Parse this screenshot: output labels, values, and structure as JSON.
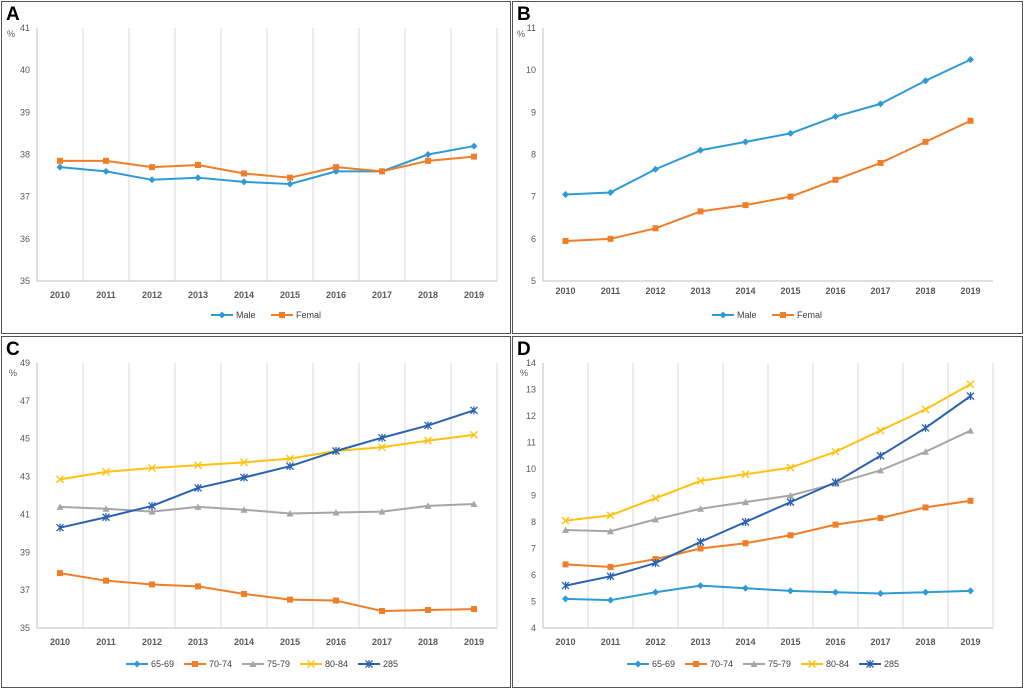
{
  "figure": {
    "colors": {
      "blue": "#2e9bd6",
      "orange": "#f07d28",
      "gray": "#a6a6a6",
      "yellow": "#ffc20e",
      "darkblue": "#2a62b0"
    }
  },
  "chart_data": [
    {
      "panel": "A",
      "type": "line",
      "ylabel": "%",
      "ylim": [
        35,
        41
      ],
      "yticks": [
        "35",
        "36",
        "37",
        "38",
        "39",
        "40",
        "41"
      ],
      "categories": [
        "2010",
        "2011",
        "2012",
        "2013",
        "2014",
        "2015",
        "2016",
        "2017",
        "2018",
        "2019"
      ],
      "grid": "vertical",
      "legend": "bottom",
      "series": [
        {
          "name": "Male",
          "color": "#2e9bd6",
          "marker": "diamond",
          "values": [
            37.7,
            37.6,
            37.4,
            37.45,
            37.35,
            37.3,
            37.6,
            37.6,
            38.0,
            38.2
          ]
        },
        {
          "name": "Femal",
          "color": "#f07d28",
          "marker": "square",
          "values": [
            37.85,
            37.85,
            37.7,
            37.75,
            37.55,
            37.45,
            37.7,
            37.6,
            37.85,
            37.95
          ]
        }
      ]
    },
    {
      "panel": "B",
      "type": "line",
      "ylabel": "%",
      "ylim": [
        5,
        11
      ],
      "yticks": [
        "5",
        "6",
        "7",
        "8",
        "9",
        "10",
        "11"
      ],
      "categories": [
        "2010",
        "2011",
        "2012",
        "2013",
        "2014",
        "2015",
        "2016",
        "2017",
        "2018",
        "2019"
      ],
      "grid": "none",
      "legend": "bottom",
      "series": [
        {
          "name": "Male",
          "color": "#2e9bd6",
          "marker": "diamond",
          "values": [
            7.05,
            7.1,
            7.65,
            8.1,
            8.3,
            8.5,
            8.9,
            9.2,
            9.75,
            10.25
          ]
        },
        {
          "name": "Femal",
          "color": "#f07d28",
          "marker": "square",
          "values": [
            5.95,
            6.0,
            6.25,
            6.65,
            6.8,
            7.0,
            7.4,
            7.8,
            8.3,
            8.8
          ]
        }
      ]
    },
    {
      "panel": "C",
      "type": "line",
      "ylabel": "%",
      "ylim": [
        35,
        49
      ],
      "yticks": [
        "35",
        "37",
        "39",
        "41",
        "43",
        "45",
        "47",
        "49"
      ],
      "categories": [
        "2010",
        "2011",
        "2012",
        "2013",
        "2014",
        "2015",
        "2016",
        "2017",
        "2018",
        "2019"
      ],
      "grid": "vertical",
      "legend": "bottom",
      "series": [
        {
          "name": "65-69",
          "color": "#2e9bd6",
          "marker": "diamond",
          "values": [
            null,
            null,
            null,
            null,
            null,
            null,
            null,
            null,
            null,
            null
          ]
        },
        {
          "name": "70-74",
          "color": "#f07d28",
          "marker": "square",
          "values": [
            37.9,
            37.5,
            37.3,
            37.2,
            36.8,
            36.5,
            36.45,
            35.9,
            35.95,
            36.0
          ]
        },
        {
          "name": "75-79",
          "color": "#a6a6a6",
          "marker": "triangle",
          "values": [
            41.4,
            41.3,
            41.15,
            41.4,
            41.25,
            41.05,
            41.1,
            41.15,
            41.45,
            41.55
          ]
        },
        {
          "name": "80-84",
          "color": "#ffc20e",
          "marker": "x",
          "values": [
            42.85,
            43.25,
            43.45,
            43.6,
            43.75,
            43.95,
            44.35,
            44.55,
            44.9,
            45.2
          ]
        },
        {
          "name": "285",
          "color": "#2a62b0",
          "marker": "asterisk",
          "values": [
            40.3,
            40.85,
            41.45,
            42.4,
            42.95,
            43.55,
            44.35,
            45.05,
            45.7,
            46.5
          ]
        }
      ]
    },
    {
      "panel": "D",
      "type": "line",
      "ylabel": "%",
      "ylim": [
        4,
        14
      ],
      "yticks": [
        "4",
        "5",
        "6",
        "7",
        "8",
        "9",
        "10",
        "11",
        "12",
        "13",
        "14"
      ],
      "categories": [
        "2010",
        "2011",
        "2012",
        "2013",
        "2014",
        "2015",
        "2016",
        "2017",
        "2018",
        "2019"
      ],
      "grid": "vertical",
      "legend": "bottom",
      "series": [
        {
          "name": "65-69",
          "color": "#2e9bd6",
          "marker": "diamond",
          "values": [
            5.1,
            5.05,
            5.35,
            5.6,
            5.5,
            5.4,
            5.35,
            5.3,
            5.35,
            5.4
          ]
        },
        {
          "name": "70-74",
          "color": "#f07d28",
          "marker": "square",
          "values": [
            6.4,
            6.3,
            6.6,
            7.0,
            7.2,
            7.5,
            7.9,
            8.15,
            8.55,
            8.8
          ]
        },
        {
          "name": "75-79",
          "color": "#a6a6a6",
          "marker": "triangle",
          "values": [
            7.7,
            7.65,
            8.1,
            8.5,
            8.75,
            9.0,
            9.45,
            9.95,
            10.65,
            11.45
          ]
        },
        {
          "name": "80-84",
          "color": "#ffc20e",
          "marker": "x",
          "values": [
            8.05,
            8.25,
            8.9,
            9.55,
            9.8,
            10.05,
            10.65,
            11.45,
            12.25,
            13.2
          ]
        },
        {
          "name": "285",
          "color": "#2a62b0",
          "marker": "asterisk",
          "values": [
            5.6,
            5.95,
            6.45,
            7.25,
            8.0,
            8.75,
            9.5,
            10.5,
            11.55,
            12.75
          ]
        }
      ]
    }
  ]
}
